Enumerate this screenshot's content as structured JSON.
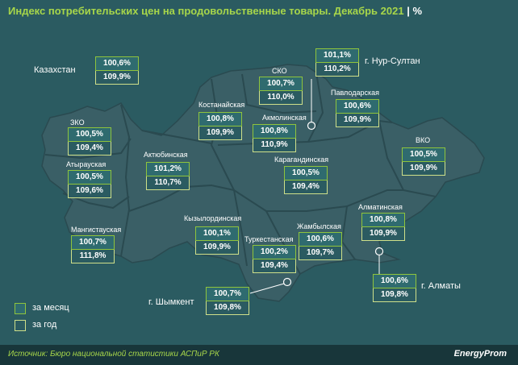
{
  "title": "Индекс потребительских цен на продовольственные товары. Декабрь 2021",
  "unit": "%",
  "kazakhstan": {
    "name": "Казахстан",
    "month": "100,6%",
    "year": "109,9%"
  },
  "regions": [
    {
      "key": "zko",
      "name": "ЗКО",
      "month": "100,5%",
      "year": "109,4%"
    },
    {
      "key": "atyrau",
      "name": "Атырауская",
      "month": "100,5%",
      "year": "109,6%"
    },
    {
      "key": "mangistau",
      "name": "Мангистауская",
      "month": "100,7%",
      "year": "111,8%"
    },
    {
      "key": "aktobe",
      "name": "Актюбинская",
      "month": "101,2%",
      "year": "110,7%"
    },
    {
      "key": "kostanay",
      "name": "Костанайская",
      "month": "100,8%",
      "year": "109,9%"
    },
    {
      "key": "sko",
      "name": "СКО",
      "month": "100,7%",
      "year": "110,0%"
    },
    {
      "key": "akmola",
      "name": "Акмолинская",
      "month": "100,8%",
      "year": "110,9%"
    },
    {
      "key": "nursultan",
      "name": "г. Нур-Султан",
      "month": "101,1%",
      "year": "110,2%"
    },
    {
      "key": "pavlodar",
      "name": "Павлодарская",
      "month": "100,6%",
      "year": "109,9%"
    },
    {
      "key": "vko",
      "name": "ВКО",
      "month": "100,5%",
      "year": "109,9%"
    },
    {
      "key": "karaganda",
      "name": "Карагандинская",
      "month": "100,5%",
      "year": "109,4%"
    },
    {
      "key": "kyzylorda",
      "name": "Кызылординская",
      "month": "100,1%",
      "year": "109,9%"
    },
    {
      "key": "turkestan",
      "name": "Туркестанская",
      "month": "100,2%",
      "year": "109,4%"
    },
    {
      "key": "zhambyl",
      "name": "Жамбылская",
      "month": "100,6%",
      "year": "109,7%"
    },
    {
      "key": "almaty_obl",
      "name": "Алматинская",
      "month": "100,8%",
      "year": "109,9%"
    },
    {
      "key": "almaty",
      "name": "г. Алматы",
      "month": "100,6%",
      "year": "109,8%"
    },
    {
      "key": "shymkent",
      "name": "г. Шымкент",
      "month": "100,7%",
      "year": "109,8%"
    }
  ],
  "legend": {
    "month": "за месяц",
    "year": "за год"
  },
  "source": "Источник: Бюро национальной статистики АСПиР РК",
  "logo": "EnergyProm",
  "colors": {
    "background": "#2b5b61",
    "map_fill": "#3a5f66",
    "border_line": "#2a4a50",
    "accent_green": "#a7d64a",
    "box_month_border": "#8fc43c",
    "box_year_border": "#cfe08a"
  }
}
